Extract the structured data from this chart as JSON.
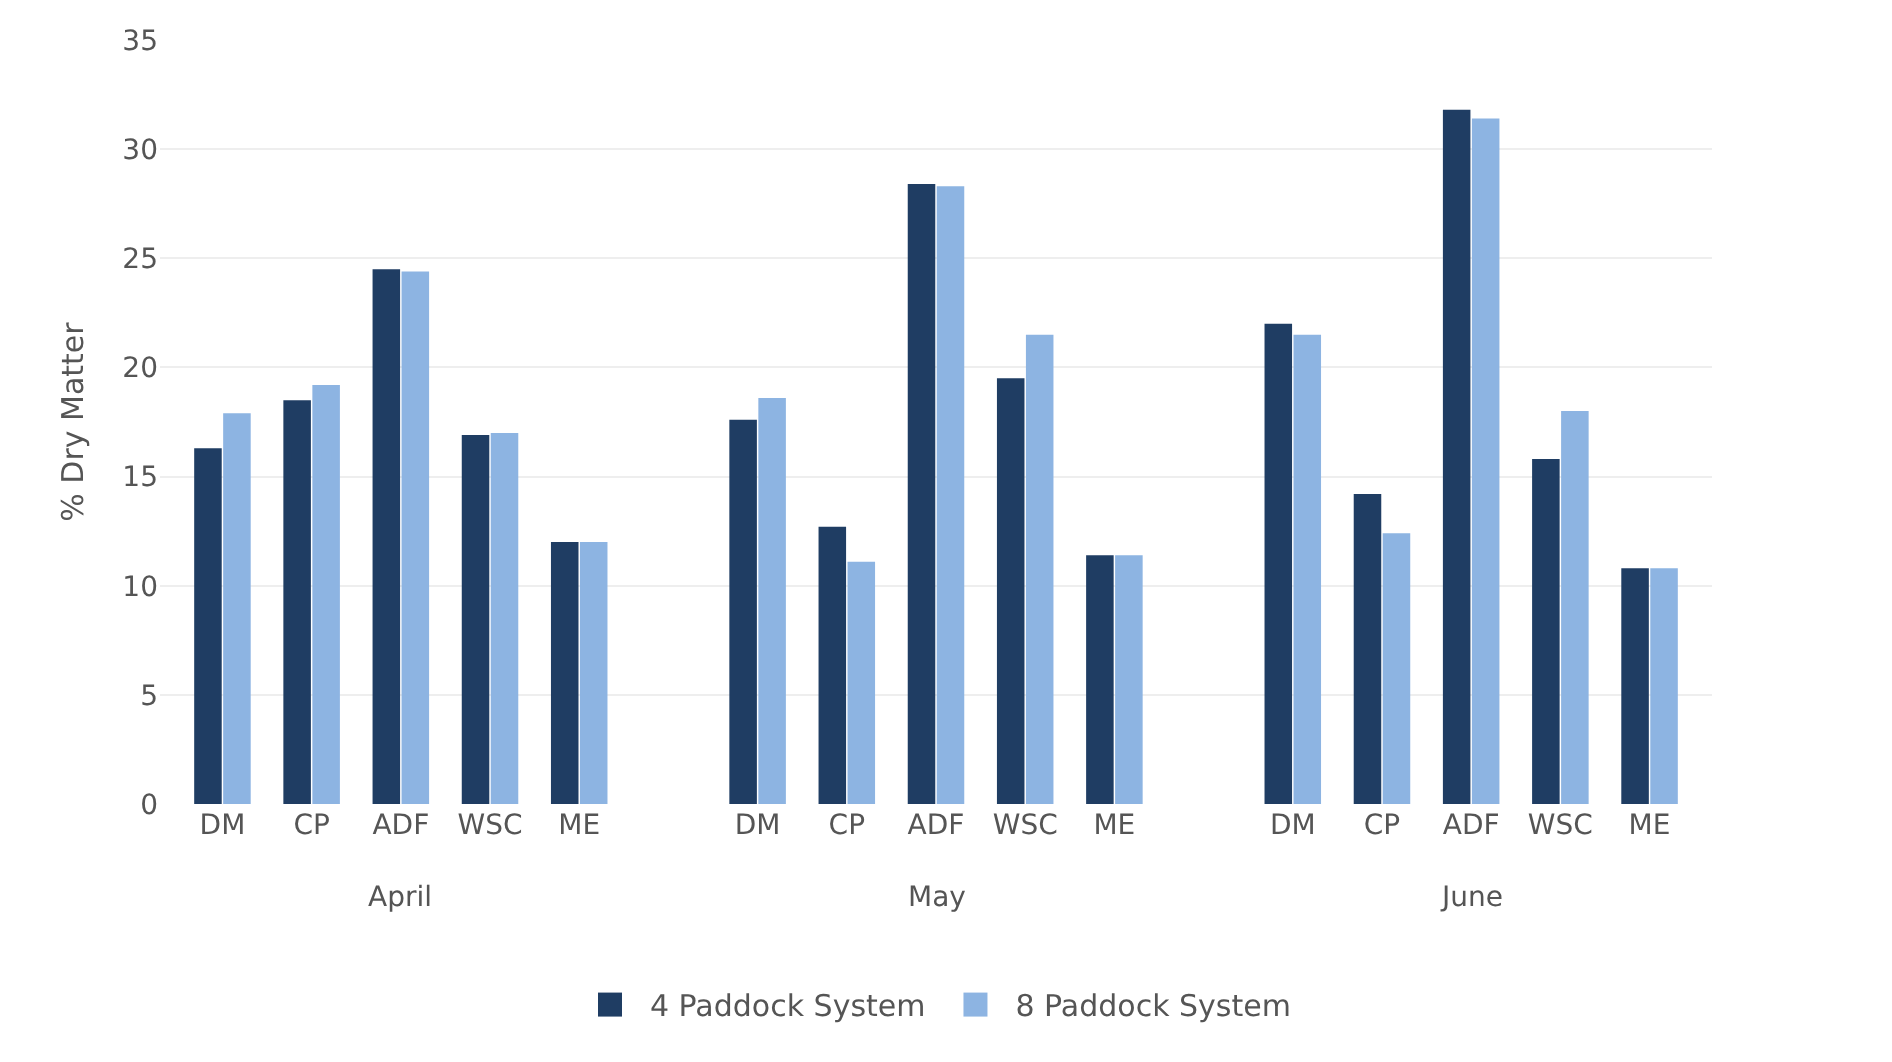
{
  "chart_data": {
    "type": "bar",
    "ylabel": "% Dry Matter",
    "categories": [
      "DM",
      "CP",
      "ADF",
      "WSC",
      "ME",
      "DM",
      "CP",
      "ADF",
      "WSC",
      "ME",
      "DM",
      "CP",
      "ADF",
      "WSC",
      "ME"
    ],
    "annotations": [
      "April",
      "May",
      "June"
    ],
    "series": [
      {
        "name": "4 Paddock System",
        "color": "#1f3d63",
        "values": [
          16.3,
          18.5,
          24.5,
          16.9,
          12.0,
          17.6,
          12.7,
          28.4,
          19.5,
          11.4,
          22.0,
          14.2,
          31.8,
          15.8,
          10.8
        ]
      },
      {
        "name": "8 Paddock System",
        "color": "#8db4e2",
        "values": [
          17.9,
          19.2,
          24.4,
          17.0,
          12.0,
          18.6,
          11.1,
          28.3,
          21.5,
          11.4,
          21.5,
          12.4,
          31.4,
          18.0,
          10.8
        ]
      }
    ],
    "ylim": [
      0,
      35
    ],
    "yticks": [
      0,
      5,
      10,
      15,
      20,
      25,
      30,
      35
    ],
    "grid": "y",
    "legend": "bottom"
  }
}
